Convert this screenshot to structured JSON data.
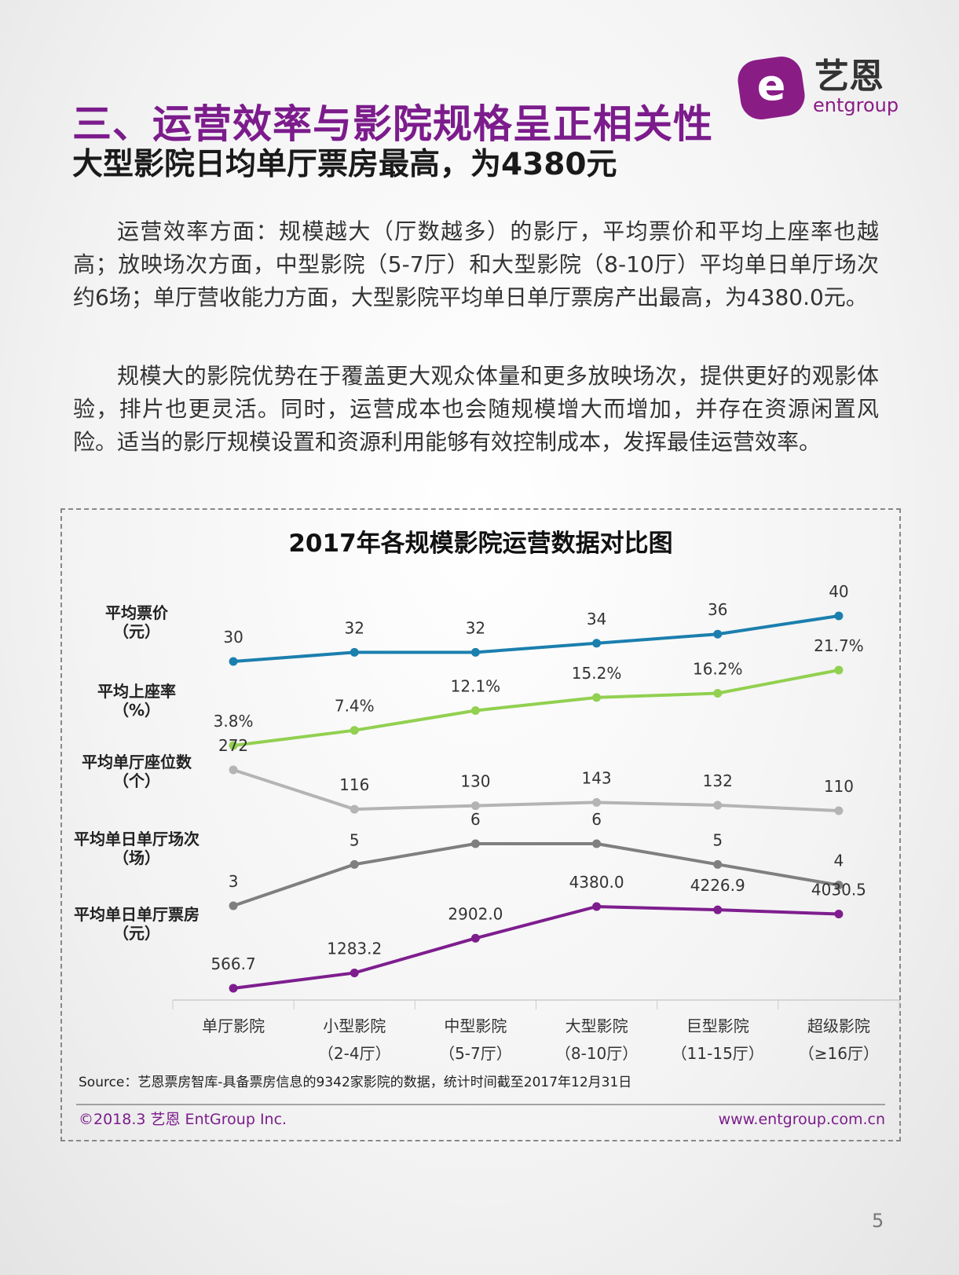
{
  "header": {
    "title": "三、运营效率与影院规格呈正相关性",
    "subtitle": "大型影院日均单厅票房最高，为4380元",
    "logo_text": "艺恩",
    "logo_sub": "entgroup"
  },
  "paragraphs": [
    "运营效率方面：规模越大（厅数越多）的影厅，平均票价和平均上座率也越高；放映场次方面，中型影院（5-7厅）和大型影院（8-10厅）平均单日单厅场次约6场；单厅营收能力方面，大型影院平均单日单厅票房产出最高，为4380.0元。",
    "规模大的影院优势在于覆盖更大观众体量和更多放映场次，提供更好的观影体验，排片也更灵活。同时，运营成本也会随规模增大而增加，并存在资源闲置风险。适当的影厅规模设置和资源利用能够有效控制成本，发挥最佳运营效率。"
  ],
  "chart_data": {
    "type": "line",
    "title": "2017年各规模影院运营数据对比图",
    "categories": [
      "单厅影院",
      "小型影院",
      "中型影院",
      "大型影院",
      "巨型影院",
      "超级影院"
    ],
    "category_notes": [
      null,
      "（2-4厅）",
      "（5-7厅）",
      "（8-10厅）",
      "（11-15厅）",
      "（≥16厅）"
    ],
    "series": [
      {
        "name": "平均票价",
        "unit": "（元）",
        "color": "#1b7fae",
        "values": [
          30,
          32,
          32,
          34,
          36,
          40
        ]
      },
      {
        "name": "平均上座率",
        "unit": "（%）",
        "color": "#92d050",
        "values": [
          3.8,
          7.4,
          12.1,
          15.2,
          16.2,
          21.7
        ],
        "value_labels": [
          "3.8%",
          "7.4%",
          "12.1%",
          "15.2%",
          "16.2%",
          "21.7%"
        ]
      },
      {
        "name": "平均单厅座位数",
        "unit": "（个）",
        "color": "#b4b4b4",
        "values": [
          272,
          116,
          130,
          143,
          132,
          110
        ]
      },
      {
        "name": "平均单日单厅场次",
        "unit": "（场）",
        "color": "#7f7f7f",
        "values": [
          3,
          5,
          6,
          6,
          5,
          4
        ]
      },
      {
        "name": "平均单日单厅票房",
        "unit": "（元）",
        "color": "#7e1e8e",
        "values": [
          566.7,
          1283.2,
          2902.0,
          4380.0,
          4226.9,
          4030.5
        ],
        "value_labels": [
          "566.7",
          "1283.2",
          "2902.0",
          "4380.0",
          "4226.9",
          "4030.5"
        ]
      }
    ],
    "source": "Source：艺恩票房智库-具备票房信息的9342家影院的数据，统计时间截至2017年12月31日"
  },
  "footer": {
    "copyright": "©2018.3 艺恩 EntGroup Inc.",
    "url": "www.entgroup.com.cn",
    "page": "5"
  }
}
